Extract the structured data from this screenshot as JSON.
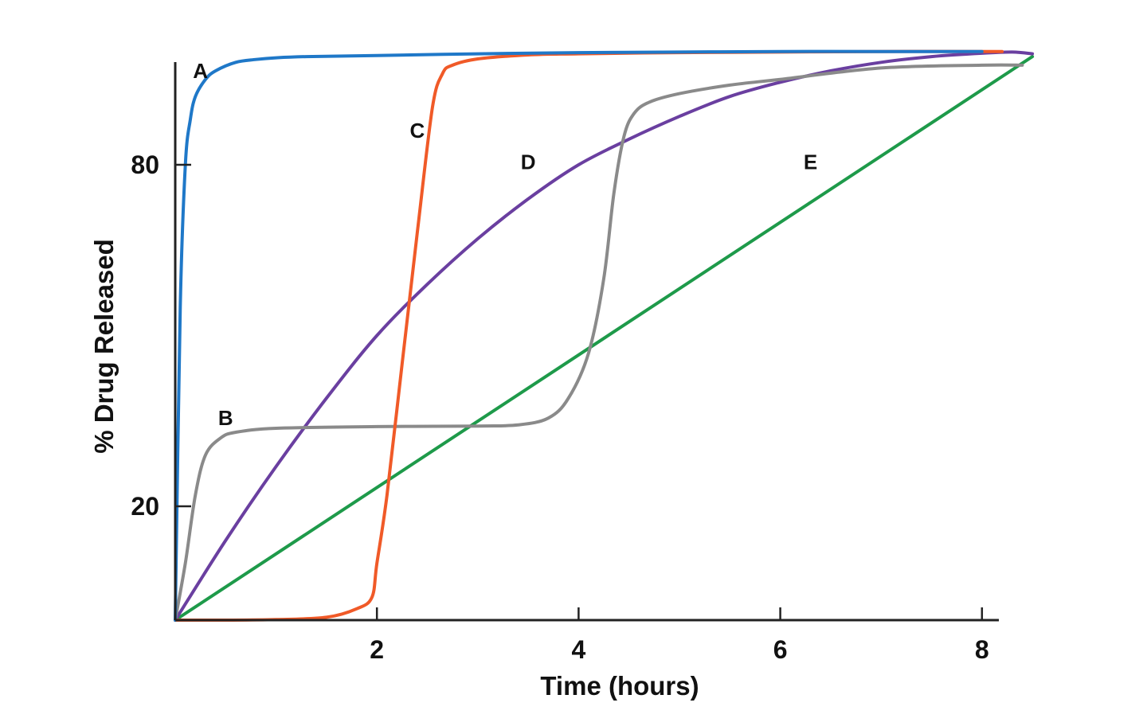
{
  "chart_data": {
    "type": "line",
    "title": "",
    "xlabel": "Time (hours)",
    "ylabel": "% Drug Released",
    "xlim": [
      0,
      8.3
    ],
    "ylim": [
      0,
      100
    ],
    "x_ticks": [
      2,
      4,
      6,
      8
    ],
    "y_ticks": [
      20,
      80
    ],
    "grid": false,
    "legend": "none",
    "series": [
      {
        "name": "A",
        "color": "#1f78c8",
        "x": [
          0,
          0.05,
          0.1,
          0.15,
          0.2,
          0.3,
          0.4,
          0.6,
          0.8,
          1.0,
          1.3,
          2,
          3,
          4,
          5,
          6,
          7,
          8
        ],
        "y": [
          0,
          55,
          80,
          88,
          92,
          95,
          96.5,
          98,
          98.5,
          98.8,
          99,
          99.2,
          99.5,
          99.7,
          99.8,
          99.9,
          99.9,
          99.9
        ]
      },
      {
        "name": "B",
        "color": "#8a8a8a",
        "x": [
          0,
          0.1,
          0.2,
          0.3,
          0.45,
          0.6,
          1,
          2,
          3,
          3.4,
          3.7,
          3.9,
          4.1,
          4.25,
          4.35,
          4.45,
          4.55,
          4.7,
          5,
          5.5,
          6,
          7,
          8,
          8.4
        ],
        "y": [
          0,
          10,
          22,
          29,
          32,
          33,
          33.7,
          34,
          34.1,
          34.3,
          35.5,
          39,
          47,
          60,
          75,
          85,
          89,
          91,
          92.5,
          94,
          95,
          97,
          97.5,
          97.5
        ]
      },
      {
        "name": "C",
        "color": "#f05a28",
        "x": [
          0,
          0.5,
          1,
          1.5,
          1.8,
          1.95,
          2.0,
          2.1,
          2.25,
          2.4,
          2.55,
          2.65,
          2.75,
          3,
          3.5,
          4,
          5,
          6,
          7,
          8.2
        ],
        "y": [
          0,
          0,
          0.1,
          0.5,
          2,
          4,
          10,
          22,
          45,
          68,
          90,
          96,
          97.5,
          98.6,
          99.3,
          99.5,
          99.7,
          99.8,
          99.9,
          99.9
        ]
      },
      {
        "name": "D",
        "color": "#6a3fa0",
        "x": [
          0,
          0.5,
          1,
          1.5,
          2,
          2.5,
          3,
          3.5,
          4,
          4.5,
          5,
          5.5,
          6,
          6.5,
          7,
          7.5,
          8,
          8.3,
          8.5
        ],
        "y": [
          0,
          14,
          27,
          39,
          50,
          59,
          67,
          74,
          80,
          84.5,
          88.5,
          92,
          94.5,
          96.5,
          98,
          99,
          99.6,
          99.8,
          99.5
        ]
      },
      {
        "name": "E",
        "color": "#1e9a4a",
        "x": [
          0,
          8.5
        ],
        "y": [
          0,
          99
        ]
      }
    ],
    "annotations": [
      {
        "text": "A",
        "x": 0.25,
        "y": 96.5
      },
      {
        "text": "B",
        "x": 0.5,
        "y": 35.5
      },
      {
        "text": "C",
        "x": 2.4,
        "y": 86
      },
      {
        "text": "D",
        "x": 3.5,
        "y": 80.5
      },
      {
        "text": "E",
        "x": 6.3,
        "y": 80.5
      }
    ]
  }
}
